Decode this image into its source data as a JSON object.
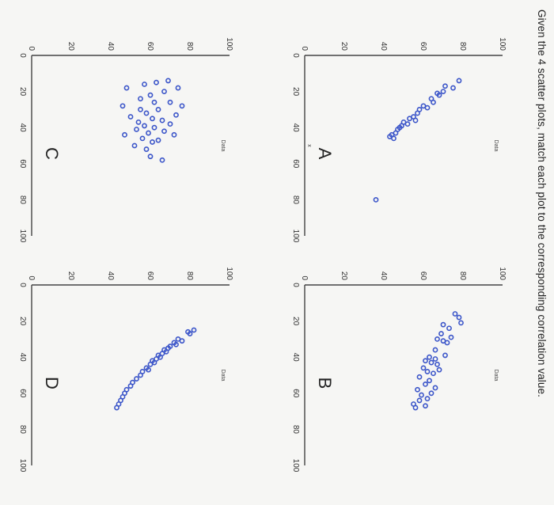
{
  "prompt": "Given the 4 scatter plots, match each plot to the corresponding correlation value.",
  "chart_data": [
    {
      "type": "scatter",
      "label": "A",
      "title": "Data",
      "xlabel": "x",
      "ylabel": "",
      "xlim": [
        0,
        100
      ],
      "ylim": [
        0,
        100
      ],
      "x_ticks": [
        "0",
        "20",
        "40",
        "60",
        "80",
        "100"
      ],
      "y_ticks": [
        "0",
        "20",
        "40",
        "60",
        "80",
        "100"
      ],
      "points": [
        [
          14,
          78
        ],
        [
          17,
          71
        ],
        [
          18,
          75
        ],
        [
          20,
          70
        ],
        [
          21,
          67
        ],
        [
          22,
          68
        ],
        [
          24,
          64
        ],
        [
          26,
          65
        ],
        [
          28,
          60
        ],
        [
          29,
          62
        ],
        [
          30,
          58
        ],
        [
          32,
          57
        ],
        [
          34,
          55
        ],
        [
          35,
          53
        ],
        [
          36,
          56
        ],
        [
          37,
          50
        ],
        [
          38,
          52
        ],
        [
          39,
          49
        ],
        [
          40,
          48
        ],
        [
          41,
          47
        ],
        [
          43,
          46
        ],
        [
          44,
          44
        ],
        [
          45,
          43
        ],
        [
          46,
          45
        ],
        [
          80,
          36
        ]
      ]
    },
    {
      "type": "scatter",
      "label": "B",
      "title": "Data",
      "xlabel": "",
      "ylabel": "",
      "xlim": [
        0,
        100
      ],
      "ylim": [
        0,
        100
      ],
      "x_ticks": [
        "0",
        "20",
        "40",
        "60",
        "80",
        "100"
      ],
      "y_ticks": [
        "0",
        "20",
        "40",
        "60",
        "80",
        "100"
      ],
      "points": [
        [
          16,
          76
        ],
        [
          18,
          78
        ],
        [
          21,
          79
        ],
        [
          22,
          70
        ],
        [
          24,
          73
        ],
        [
          27,
          69
        ],
        [
          29,
          74
        ],
        [
          30,
          67
        ],
        [
          31,
          70
        ],
        [
          32,
          72
        ],
        [
          36,
          66
        ],
        [
          39,
          71
        ],
        [
          40,
          63
        ],
        [
          41,
          66
        ],
        [
          42,
          61
        ],
        [
          43,
          64
        ],
        [
          44,
          67
        ],
        [
          46,
          60
        ],
        [
          47,
          68
        ],
        [
          48,
          62
        ],
        [
          49,
          65
        ],
        [
          51,
          58
        ],
        [
          53,
          63
        ],
        [
          55,
          61
        ],
        [
          57,
          66
        ],
        [
          58,
          57
        ],
        [
          60,
          64
        ],
        [
          61,
          59
        ],
        [
          63,
          62
        ],
        [
          64,
          58
        ],
        [
          66,
          55
        ],
        [
          67,
          61
        ],
        [
          68,
          56
        ]
      ]
    },
    {
      "type": "scatter",
      "label": "C",
      "title": "Data",
      "xlabel": "",
      "ylabel": "",
      "xlim": [
        0,
        100
      ],
      "ylim": [
        0,
        100
      ],
      "x_ticks": [
        "0",
        "20",
        "40",
        "60",
        "80",
        "100"
      ],
      "y_ticks": [
        "0",
        "20",
        "40",
        "60",
        "80",
        "100"
      ],
      "points": [
        [
          14,
          69
        ],
        [
          15,
          63
        ],
        [
          16,
          57
        ],
        [
          18,
          48
        ],
        [
          18,
          74
        ],
        [
          20,
          67
        ],
        [
          22,
          60
        ],
        [
          24,
          55
        ],
        [
          26,
          62
        ],
        [
          26,
          70
        ],
        [
          28,
          46
        ],
        [
          28,
          76
        ],
        [
          30,
          64
        ],
        [
          30,
          55
        ],
        [
          32,
          58
        ],
        [
          33,
          73
        ],
        [
          34,
          50
        ],
        [
          35,
          61
        ],
        [
          36,
          66
        ],
        [
          37,
          54
        ],
        [
          38,
          70
        ],
        [
          39,
          57
        ],
        [
          40,
          62
        ],
        [
          41,
          53
        ],
        [
          42,
          67
        ],
        [
          43,
          59
        ],
        [
          44,
          47
        ],
        [
          44,
          72
        ],
        [
          46,
          56
        ],
        [
          47,
          64
        ],
        [
          48,
          61
        ],
        [
          50,
          52
        ],
        [
          52,
          58
        ],
        [
          56,
          60
        ],
        [
          58,
          66
        ]
      ]
    },
    {
      "type": "scatter",
      "label": "D",
      "title": "Data",
      "xlabel": "",
      "ylabel": "",
      "xlim": [
        0,
        100
      ],
      "ylim": [
        0,
        100
      ],
      "x_ticks": [
        "0",
        "20",
        "40",
        "60",
        "80",
        "100"
      ],
      "y_ticks": [
        "0",
        "20",
        "40",
        "60",
        "80",
        "100"
      ],
      "points": [
        [
          25,
          82
        ],
        [
          26,
          79
        ],
        [
          27,
          80
        ],
        [
          30,
          74
        ],
        [
          31,
          76
        ],
        [
          32,
          72
        ],
        [
          33,
          73
        ],
        [
          34,
          70
        ],
        [
          35,
          69
        ],
        [
          36,
          67
        ],
        [
          37,
          68
        ],
        [
          38,
          66
        ],
        [
          39,
          64
        ],
        [
          40,
          65
        ],
        [
          41,
          63
        ],
        [
          42,
          61
        ],
        [
          43,
          62
        ],
        [
          44,
          60
        ],
        [
          46,
          58
        ],
        [
          47,
          59
        ],
        [
          48,
          56
        ],
        [
          50,
          55
        ],
        [
          52,
          53
        ],
        [
          54,
          51
        ],
        [
          56,
          50
        ],
        [
          58,
          48
        ],
        [
          60,
          47
        ],
        [
          62,
          46
        ],
        [
          64,
          45
        ],
        [
          66,
          44
        ],
        [
          68,
          43
        ]
      ]
    }
  ]
}
